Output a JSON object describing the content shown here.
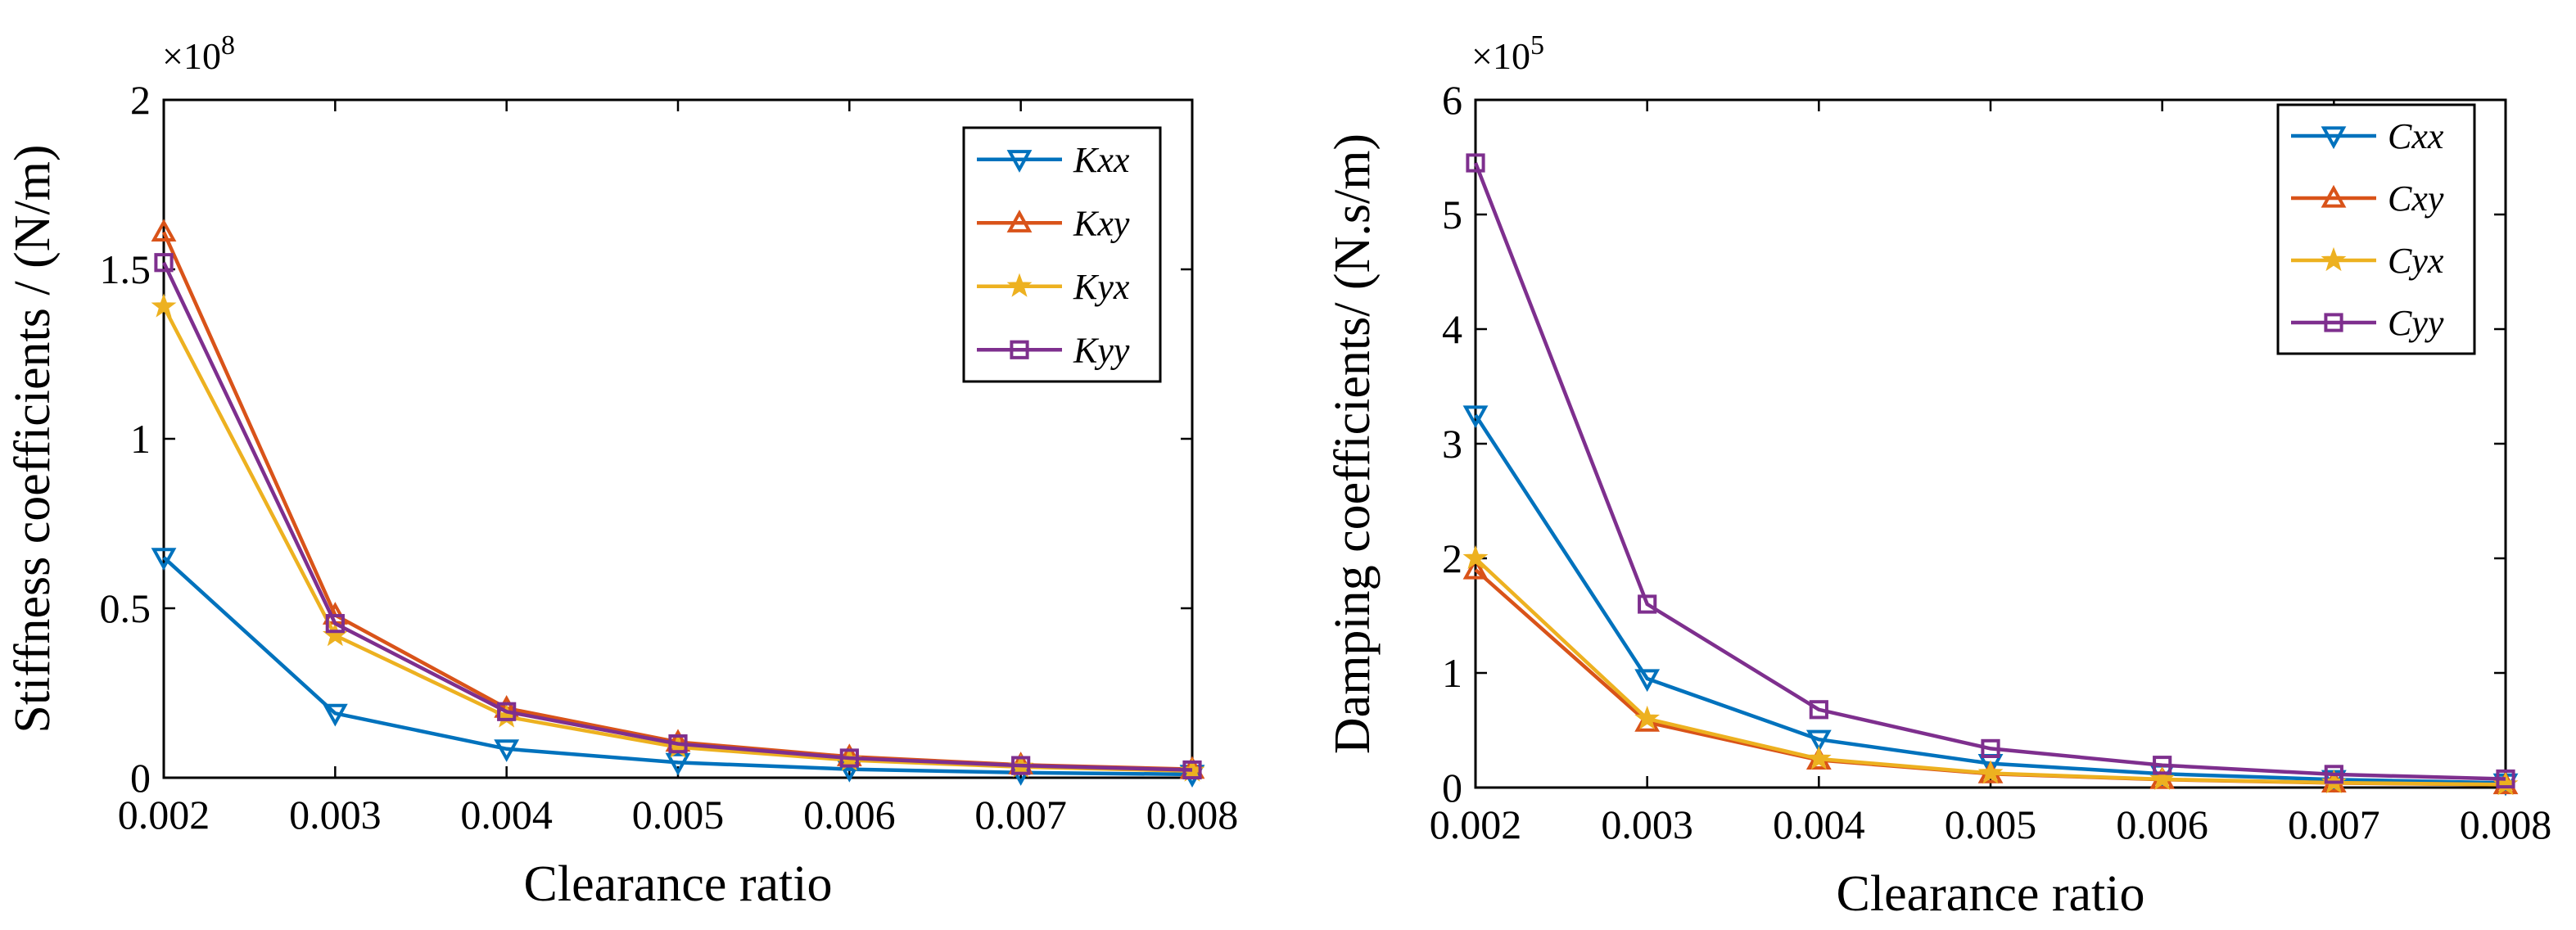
{
  "chart_data": [
    {
      "type": "line",
      "xlabel": "Clearance ratio",
      "ylabel": "Stiffness coefficients / (N/m)",
      "y_multiplier": "×10",
      "y_exponent": "8",
      "xlim": [
        0.002,
        0.008
      ],
      "ylim": [
        0,
        2
      ],
      "x": [
        0.002,
        0.003,
        0.004,
        0.005,
        0.006,
        0.007,
        0.008
      ],
      "xticks": [
        "0.002",
        "0.003",
        "0.004",
        "0.005",
        "0.006",
        "0.007",
        "0.008"
      ],
      "yticks": [
        "0",
        "0.5",
        "1",
        "1.5",
        "2"
      ],
      "ytick_values": [
        0,
        0.5,
        1,
        1.5,
        2
      ],
      "legend_position": "top-right",
      "series": [
        {
          "name": "Kxx",
          "color": "#0072BD",
          "marker": "triangle-down",
          "values": [
            0.65,
            0.19,
            0.085,
            0.045,
            0.025,
            0.015,
            0.01
          ]
        },
        {
          "name": "Kxy",
          "color": "#D95319",
          "marker": "triangle-up",
          "values": [
            1.61,
            0.48,
            0.205,
            0.105,
            0.062,
            0.038,
            0.025
          ]
        },
        {
          "name": "Kyx",
          "color": "#EDB120",
          "marker": "star",
          "values": [
            1.39,
            0.42,
            0.18,
            0.09,
            0.052,
            0.032,
            0.02
          ]
        },
        {
          "name": "Kyy",
          "color": "#7E2F8E",
          "marker": "square",
          "values": [
            1.52,
            0.455,
            0.195,
            0.1,
            0.058,
            0.036,
            0.023
          ]
        }
      ]
    },
    {
      "type": "line",
      "xlabel": "Clearance ratio",
      "ylabel": "Damping coefficients/ (N.s/m)",
      "y_multiplier": "×10",
      "y_exponent": "5",
      "xlim": [
        0.002,
        0.008
      ],
      "ylim": [
        0,
        6
      ],
      "x": [
        0.002,
        0.003,
        0.004,
        0.005,
        0.006,
        0.007,
        0.008
      ],
      "xticks": [
        "0.002",
        "0.003",
        "0.004",
        "0.005",
        "0.006",
        "0.007",
        "0.008"
      ],
      "yticks": [
        "0",
        "1",
        "2",
        "3",
        "4",
        "5",
        "6"
      ],
      "ytick_values": [
        0,
        1,
        2,
        3,
        4,
        5,
        6
      ],
      "legend_position": "top-right",
      "series": [
        {
          "name": "Cxx",
          "color": "#0072BD",
          "marker": "triangle-down",
          "values": [
            3.25,
            0.95,
            0.42,
            0.21,
            0.12,
            0.07,
            0.04
          ]
        },
        {
          "name": "Cxy",
          "color": "#D95319",
          "marker": "triangle-up",
          "values": [
            1.9,
            0.57,
            0.24,
            0.12,
            0.07,
            0.04,
            0.025
          ]
        },
        {
          "name": "Cyx",
          "color": "#EDB120",
          "marker": "star",
          "values": [
            2.0,
            0.6,
            0.25,
            0.125,
            0.072,
            0.042,
            0.026
          ]
        },
        {
          "name": "Cyy",
          "color": "#7E2F8E",
          "marker": "square",
          "values": [
            5.45,
            1.6,
            0.68,
            0.34,
            0.195,
            0.115,
            0.075
          ]
        }
      ]
    }
  ]
}
